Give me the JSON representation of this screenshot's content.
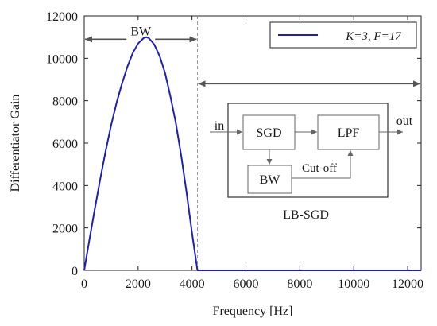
{
  "chart_data": {
    "type": "line",
    "xlabel": "Frequency [Hz]",
    "ylabel": "Differentiator Gain",
    "xlim": [
      0,
      12500
    ],
    "ylim": [
      0,
      12000
    ],
    "xticks": [
      0,
      2000,
      4000,
      6000,
      8000,
      10000,
      12000
    ],
    "yticks": [
      0,
      2000,
      4000,
      6000,
      8000,
      10000,
      12000
    ],
    "xtick_labels": [
      "0",
      "2000",
      "4000",
      "6000",
      "8000",
      "10000",
      "12000"
    ],
    "ytick_labels": [
      "0",
      "2000",
      "4000",
      "6000",
      "8000",
      "10000",
      "12000"
    ],
    "grid": false,
    "legend_position": "top-right",
    "series": [
      {
        "name": "K=3, F=17",
        "color": "#1f1fb4",
        "x": [
          0,
          200,
          400,
          600,
          800,
          1000,
          1200,
          1400,
          1600,
          1800,
          2000,
          2200,
          2300,
          2400,
          2600,
          2800,
          3000,
          3200,
          3400,
          3600,
          3800,
          4000,
          4200,
          4400,
          5000,
          6000,
          7000,
          8000,
          9000,
          10000,
          11000,
          12000,
          12500
        ],
        "y": [
          0,
          1500,
          2950,
          4350,
          5650,
          6850,
          7900,
          8800,
          9600,
          10250,
          10700,
          10950,
          11000,
          10950,
          10650,
          10100,
          9300,
          8200,
          6950,
          5400,
          3650,
          1750,
          0,
          0,
          0,
          0,
          0,
          0,
          0,
          0,
          0,
          0,
          0
        ]
      }
    ],
    "annotations": {
      "bw_label": "BW",
      "bw_range": [
        0,
        4200
      ],
      "divider_x": 4200,
      "right_range": [
        4200,
        12500
      ]
    }
  },
  "inset_diagram": {
    "title": "LB-SGD",
    "blocks": {
      "sgd": "SGD",
      "lpf": "LPF",
      "bw": "BW"
    },
    "labels": {
      "input": "in",
      "output": "out",
      "cutoff": "Cut-off"
    }
  }
}
